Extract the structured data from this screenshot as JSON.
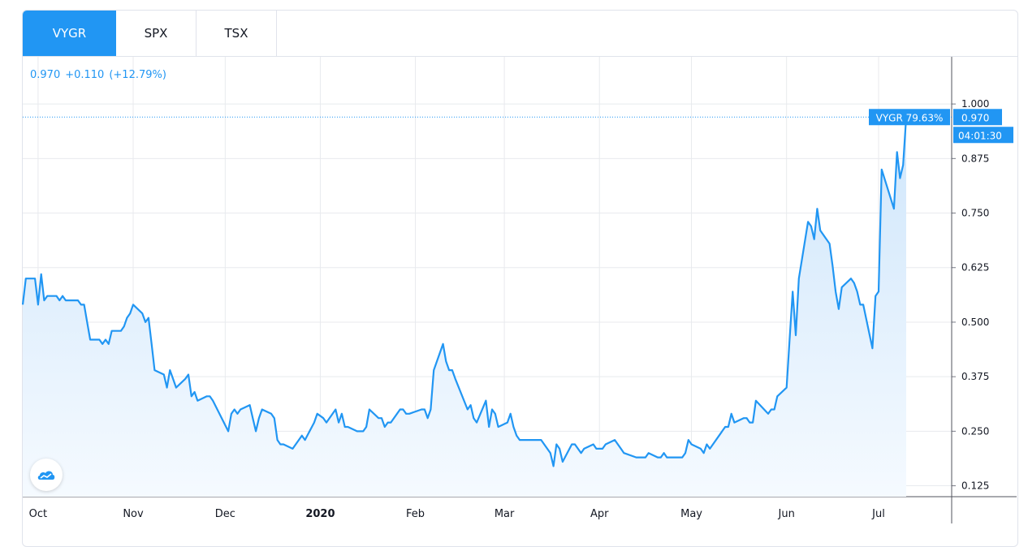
{
  "tabs": [
    {
      "label": "VYGR",
      "active": true
    },
    {
      "label": "SPX",
      "active": false
    },
    {
      "label": "TSX",
      "active": false
    }
  ],
  "legend": {
    "price": "0.970",
    "change": "+0.110",
    "change_pct": "(+12.79%)"
  },
  "last_label": {
    "series_label": "VYGR 79.63%",
    "price": "0.970",
    "countdown": "04:01:30"
  },
  "colors": {
    "accent": "#2196f3",
    "line": "#2196f3",
    "grid": "#e8eaee",
    "axis_text": "#131722"
  },
  "logo_icon": "tradingview-logo-icon",
  "chart_data": {
    "type": "area",
    "title": "",
    "xlabel": "",
    "ylabel": "",
    "ylim": [
      0.1,
      1.03
    ],
    "y_ticks": [
      1.0,
      0.875,
      0.75,
      0.625,
      0.5,
      0.375,
      0.25,
      0.125
    ],
    "y_tick_labels": [
      "1.000",
      "0.875",
      "0.750",
      "0.625",
      "0.500",
      "0.375",
      "0.250",
      "0.125"
    ],
    "x_labels": [
      {
        "label": "Oct",
        "date": "2019-10-01",
        "bold": false
      },
      {
        "label": "Nov",
        "date": "2019-11-01",
        "bold": false
      },
      {
        "label": "Dec",
        "date": "2019-12-01",
        "bold": false
      },
      {
        "label": "2020",
        "date": "2020-01-01",
        "bold": true
      },
      {
        "label": "Feb",
        "date": "2020-02-01",
        "bold": false
      },
      {
        "label": "Mar",
        "date": "2020-03-01",
        "bold": false
      },
      {
        "label": "Apr",
        "date": "2020-04-01",
        "bold": false
      },
      {
        "label": "May",
        "date": "2020-05-01",
        "bold": false
      },
      {
        "label": "Jun",
        "date": "2020-06-01",
        "bold": false
      },
      {
        "label": "Jul",
        "date": "2020-07-01",
        "bold": false
      }
    ],
    "grid": true,
    "last_value": 0.97,
    "series": [
      {
        "points": [
          [
            "2019-09-26",
            0.54
          ],
          [
            "2019-09-27",
            0.6
          ],
          [
            "2019-09-30",
            0.6
          ],
          [
            "2019-10-01",
            0.54
          ],
          [
            "2019-10-02",
            0.61
          ],
          [
            "2019-10-03",
            0.55
          ],
          [
            "2019-10-04",
            0.56
          ],
          [
            "2019-10-07",
            0.56
          ],
          [
            "2019-10-08",
            0.55
          ],
          [
            "2019-10-09",
            0.56
          ],
          [
            "2019-10-10",
            0.55
          ],
          [
            "2019-10-11",
            0.55
          ],
          [
            "2019-10-14",
            0.55
          ],
          [
            "2019-10-15",
            0.54
          ],
          [
            "2019-10-16",
            0.54
          ],
          [
            "2019-10-17",
            0.5
          ],
          [
            "2019-10-18",
            0.46
          ],
          [
            "2019-10-21",
            0.46
          ],
          [
            "2019-10-22",
            0.45
          ],
          [
            "2019-10-23",
            0.46
          ],
          [
            "2019-10-24",
            0.45
          ],
          [
            "2019-10-25",
            0.48
          ],
          [
            "2019-10-28",
            0.48
          ],
          [
            "2019-10-29",
            0.49
          ],
          [
            "2019-10-30",
            0.51
          ],
          [
            "2019-10-31",
            0.52
          ],
          [
            "2019-11-01",
            0.54
          ],
          [
            "2019-11-04",
            0.52
          ],
          [
            "2019-11-05",
            0.5
          ],
          [
            "2019-11-06",
            0.51
          ],
          [
            "2019-11-07",
            0.45
          ],
          [
            "2019-11-08",
            0.39
          ],
          [
            "2019-11-11",
            0.38
          ],
          [
            "2019-11-12",
            0.35
          ],
          [
            "2019-11-13",
            0.39
          ],
          [
            "2019-11-14",
            0.37
          ],
          [
            "2019-11-15",
            0.35
          ],
          [
            "2019-11-18",
            0.37
          ],
          [
            "2019-11-19",
            0.38
          ],
          [
            "2019-11-20",
            0.33
          ],
          [
            "2019-11-21",
            0.34
          ],
          [
            "2019-11-22",
            0.32
          ],
          [
            "2019-11-25",
            0.33
          ],
          [
            "2019-11-26",
            0.33
          ],
          [
            "2019-11-27",
            0.32
          ],
          [
            "2019-12-02",
            0.25
          ],
          [
            "2019-12-03",
            0.29
          ],
          [
            "2019-12-04",
            0.3
          ],
          [
            "2019-12-05",
            0.29
          ],
          [
            "2019-12-06",
            0.3
          ],
          [
            "2019-12-09",
            0.31
          ],
          [
            "2019-12-10",
            0.28
          ],
          [
            "2019-12-11",
            0.25
          ],
          [
            "2019-12-12",
            0.28
          ],
          [
            "2019-12-13",
            0.3
          ],
          [
            "2019-12-16",
            0.29
          ],
          [
            "2019-12-17",
            0.28
          ],
          [
            "2019-12-18",
            0.23
          ],
          [
            "2019-12-19",
            0.22
          ],
          [
            "2019-12-20",
            0.22
          ],
          [
            "2019-12-23",
            0.21
          ],
          [
            "2019-12-24",
            0.22
          ],
          [
            "2019-12-26",
            0.24
          ],
          [
            "2019-12-27",
            0.23
          ],
          [
            "2019-12-30",
            0.27
          ],
          [
            "2019-12-31",
            0.29
          ],
          [
            "2020-01-02",
            0.28
          ],
          [
            "2020-01-03",
            0.27
          ],
          [
            "2020-01-06",
            0.3
          ],
          [
            "2020-01-07",
            0.27
          ],
          [
            "2020-01-08",
            0.29
          ],
          [
            "2020-01-09",
            0.26
          ],
          [
            "2020-01-10",
            0.26
          ],
          [
            "2020-01-13",
            0.25
          ],
          [
            "2020-01-14",
            0.25
          ],
          [
            "2020-01-15",
            0.25
          ],
          [
            "2020-01-16",
            0.26
          ],
          [
            "2020-01-17",
            0.3
          ],
          [
            "2020-01-20",
            0.28
          ],
          [
            "2020-01-21",
            0.28
          ],
          [
            "2020-01-22",
            0.26
          ],
          [
            "2020-01-23",
            0.27
          ],
          [
            "2020-01-24",
            0.27
          ],
          [
            "2020-01-27",
            0.3
          ],
          [
            "2020-01-28",
            0.3
          ],
          [
            "2020-01-29",
            0.29
          ],
          [
            "2020-01-30",
            0.29
          ],
          [
            "2020-02-03",
            0.3
          ],
          [
            "2020-02-04",
            0.3
          ],
          [
            "2020-02-05",
            0.28
          ],
          [
            "2020-02-06",
            0.3
          ],
          [
            "2020-02-07",
            0.39
          ],
          [
            "2020-02-10",
            0.45
          ],
          [
            "2020-02-11",
            0.41
          ],
          [
            "2020-02-12",
            0.39
          ],
          [
            "2020-02-13",
            0.39
          ],
          [
            "2020-02-14",
            0.37
          ],
          [
            "2020-02-18",
            0.3
          ],
          [
            "2020-02-19",
            0.31
          ],
          [
            "2020-02-20",
            0.28
          ],
          [
            "2020-02-21",
            0.27
          ],
          [
            "2020-02-24",
            0.32
          ],
          [
            "2020-02-25",
            0.26
          ],
          [
            "2020-02-26",
            0.3
          ],
          [
            "2020-02-27",
            0.29
          ],
          [
            "2020-02-28",
            0.26
          ],
          [
            "2020-03-02",
            0.27
          ],
          [
            "2020-03-03",
            0.29
          ],
          [
            "2020-03-04",
            0.26
          ],
          [
            "2020-03-05",
            0.24
          ],
          [
            "2020-03-06",
            0.23
          ],
          [
            "2020-03-09",
            0.23
          ],
          [
            "2020-03-10",
            0.23
          ],
          [
            "2020-03-11",
            0.23
          ],
          [
            "2020-03-12",
            0.23
          ],
          [
            "2020-03-13",
            0.23
          ],
          [
            "2020-03-16",
            0.2
          ],
          [
            "2020-03-17",
            0.17
          ],
          [
            "2020-03-18",
            0.22
          ],
          [
            "2020-03-19",
            0.21
          ],
          [
            "2020-03-20",
            0.18
          ],
          [
            "2020-03-23",
            0.22
          ],
          [
            "2020-03-24",
            0.22
          ],
          [
            "2020-03-25",
            0.21
          ],
          [
            "2020-03-26",
            0.2
          ],
          [
            "2020-03-27",
            0.21
          ],
          [
            "2020-03-30",
            0.22
          ],
          [
            "2020-03-31",
            0.21
          ],
          [
            "2020-04-01",
            0.21
          ],
          [
            "2020-04-02",
            0.21
          ],
          [
            "2020-04-03",
            0.22
          ],
          [
            "2020-04-06",
            0.23
          ],
          [
            "2020-04-07",
            0.22
          ],
          [
            "2020-04-08",
            0.21
          ],
          [
            "2020-04-09",
            0.2
          ],
          [
            "2020-04-13",
            0.19
          ],
          [
            "2020-04-14",
            0.19
          ],
          [
            "2020-04-15",
            0.19
          ],
          [
            "2020-04-16",
            0.19
          ],
          [
            "2020-04-17",
            0.2
          ],
          [
            "2020-04-20",
            0.19
          ],
          [
            "2020-04-21",
            0.19
          ],
          [
            "2020-04-22",
            0.2
          ],
          [
            "2020-04-23",
            0.19
          ],
          [
            "2020-04-24",
            0.19
          ],
          [
            "2020-04-27",
            0.19
          ],
          [
            "2020-04-28",
            0.19
          ],
          [
            "2020-04-29",
            0.2
          ],
          [
            "2020-04-30",
            0.23
          ],
          [
            "2020-05-01",
            0.22
          ],
          [
            "2020-05-04",
            0.21
          ],
          [
            "2020-05-05",
            0.2
          ],
          [
            "2020-05-06",
            0.22
          ],
          [
            "2020-05-07",
            0.21
          ],
          [
            "2020-05-08",
            0.22
          ],
          [
            "2020-05-11",
            0.25
          ],
          [
            "2020-05-12",
            0.26
          ],
          [
            "2020-05-13",
            0.26
          ],
          [
            "2020-05-14",
            0.29
          ],
          [
            "2020-05-15",
            0.27
          ],
          [
            "2020-05-18",
            0.28
          ],
          [
            "2020-05-19",
            0.28
          ],
          [
            "2020-05-20",
            0.27
          ],
          [
            "2020-05-21",
            0.27
          ],
          [
            "2020-05-22",
            0.32
          ],
          [
            "2020-05-26",
            0.29
          ],
          [
            "2020-05-27",
            0.3
          ],
          [
            "2020-05-28",
            0.3
          ],
          [
            "2020-05-29",
            0.33
          ],
          [
            "2020-06-01",
            0.35
          ],
          [
            "2020-06-02",
            0.46
          ],
          [
            "2020-06-03",
            0.57
          ],
          [
            "2020-06-04",
            0.47
          ],
          [
            "2020-06-05",
            0.6
          ],
          [
            "2020-06-08",
            0.73
          ],
          [
            "2020-06-09",
            0.72
          ],
          [
            "2020-06-10",
            0.69
          ],
          [
            "2020-06-11",
            0.76
          ],
          [
            "2020-06-12",
            0.71
          ],
          [
            "2020-06-15",
            0.68
          ],
          [
            "2020-06-16",
            0.63
          ],
          [
            "2020-06-17",
            0.57
          ],
          [
            "2020-06-18",
            0.53
          ],
          [
            "2020-06-19",
            0.58
          ],
          [
            "2020-06-22",
            0.6
          ],
          [
            "2020-06-23",
            0.59
          ],
          [
            "2020-06-24",
            0.57
          ],
          [
            "2020-06-25",
            0.54
          ],
          [
            "2020-06-26",
            0.54
          ],
          [
            "2020-06-29",
            0.44
          ],
          [
            "2020-06-30",
            0.56
          ],
          [
            "2020-07-01",
            0.57
          ],
          [
            "2020-07-02",
            0.85
          ],
          [
            "2020-07-06",
            0.76
          ],
          [
            "2020-07-07",
            0.89
          ],
          [
            "2020-07-08",
            0.83
          ],
          [
            "2020-07-09",
            0.86
          ],
          [
            "2020-07-10",
            0.97
          ]
        ]
      }
    ]
  }
}
